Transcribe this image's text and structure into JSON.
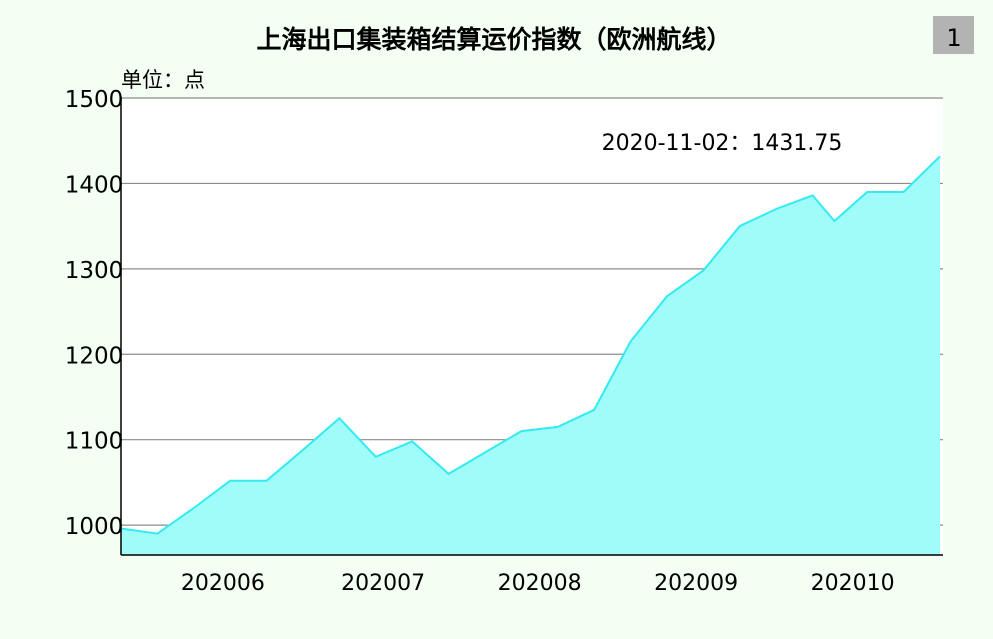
{
  "page_badge": "1",
  "chart_data": {
    "type": "area",
    "title": "上海出口集装箱结算运价指数（欧洲航线）",
    "unit_label": "单位：点",
    "annotation": "2020-11-02：1431.75",
    "ylim": [
      965,
      1500
    ],
    "yticks": [
      1000,
      1100,
      1200,
      1300,
      1400,
      1500
    ],
    "xlim": [
      0,
      22.5
    ],
    "xticks": [
      {
        "label": "202006",
        "pos": 2.8
      },
      {
        "label": "202007",
        "pos": 7.2
      },
      {
        "label": "202008",
        "pos": 11.5
      },
      {
        "label": "202009",
        "pos": 15.8
      },
      {
        "label": "202010",
        "pos": 20.1
      }
    ],
    "x": [
      0,
      1,
      2,
      3,
      4,
      5,
      6,
      7,
      8,
      9,
      10,
      11,
      12,
      13,
      14,
      15,
      16,
      17,
      18,
      19,
      19.6,
      20.5,
      21.5,
      22.5
    ],
    "values": [
      996,
      990,
      1020,
      1052,
      1052,
      1088,
      1125,
      1080,
      1098,
      1060,
      1085,
      1110,
      1115,
      1135,
      1215,
      1268,
      1298,
      1350,
      1370,
      1386,
      1356,
      1390,
      1390,
      1431.75
    ],
    "grid": true,
    "fill_color": "#9ffcf8",
    "line_color": "#33eaf0"
  }
}
